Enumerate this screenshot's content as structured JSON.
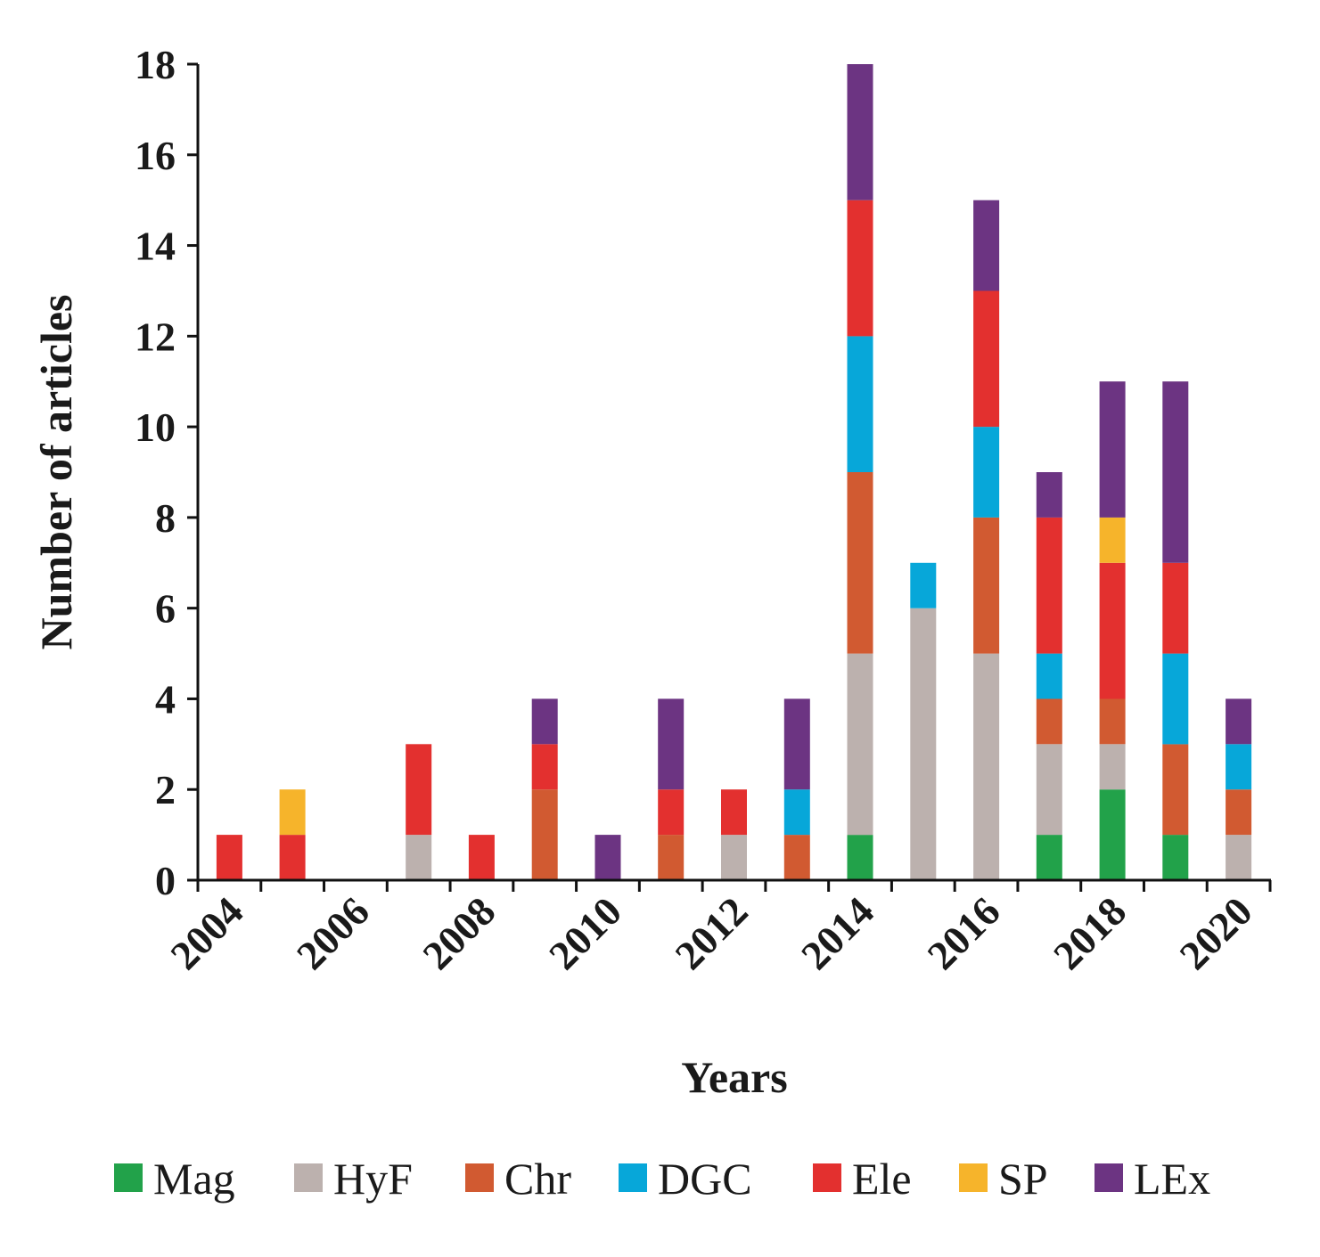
{
  "chart_data": {
    "type": "bar",
    "stacked": true,
    "title": "",
    "xlabel": "Years",
    "ylabel": "Number of articles",
    "ylim": [
      0,
      18
    ],
    "ytick_step": 2,
    "grid": false,
    "legend_position": "bottom",
    "categories": [
      "2004",
      "2005",
      "2006",
      "2007",
      "2008",
      "2009",
      "2010",
      "2011",
      "2012",
      "2013",
      "2014",
      "2015",
      "2016",
      "2017",
      "2018",
      "2019",
      "2020"
    ],
    "xtick_labels": [
      "2004",
      "2006",
      "2008",
      "2010",
      "2012",
      "2014",
      "2016",
      "2018",
      "2020"
    ],
    "series": [
      {
        "name": "Mag",
        "color": "#22a24a",
        "values": [
          0,
          0,
          0,
          0,
          0,
          0,
          0,
          0,
          0,
          0,
          1,
          0,
          0,
          1,
          2,
          1,
          0
        ]
      },
      {
        "name": "HyF",
        "color": "#bcb1ae",
        "values": [
          0,
          0,
          0,
          1,
          0,
          0,
          0,
          0,
          1,
          0,
          4,
          6,
          5,
          2,
          1,
          0,
          1
        ]
      },
      {
        "name": "Chr",
        "color": "#d15a31",
        "values": [
          0,
          0,
          0,
          0,
          0,
          2,
          0,
          1,
          0,
          1,
          4,
          0,
          3,
          1,
          1,
          2,
          1
        ]
      },
      {
        "name": "DGC",
        "color": "#07a7d9",
        "values": [
          0,
          0,
          0,
          0,
          0,
          0,
          0,
          0,
          0,
          1,
          3,
          1,
          2,
          1,
          0,
          2,
          1
        ]
      },
      {
        "name": "Ele",
        "color": "#e3302f",
        "values": [
          1,
          1,
          0,
          2,
          1,
          1,
          0,
          1,
          1,
          0,
          3,
          0,
          3,
          3,
          3,
          2,
          0
        ]
      },
      {
        "name": "SP",
        "color": "#f6b42b",
        "values": [
          0,
          1,
          0,
          0,
          0,
          0,
          0,
          0,
          0,
          0,
          0,
          0,
          0,
          0,
          1,
          0,
          0
        ]
      },
      {
        "name": "LEx",
        "color": "#6c3482",
        "values": [
          0,
          0,
          0,
          0,
          0,
          1,
          1,
          2,
          0,
          2,
          3,
          0,
          2,
          1,
          3,
          4,
          1
        ]
      }
    ]
  }
}
